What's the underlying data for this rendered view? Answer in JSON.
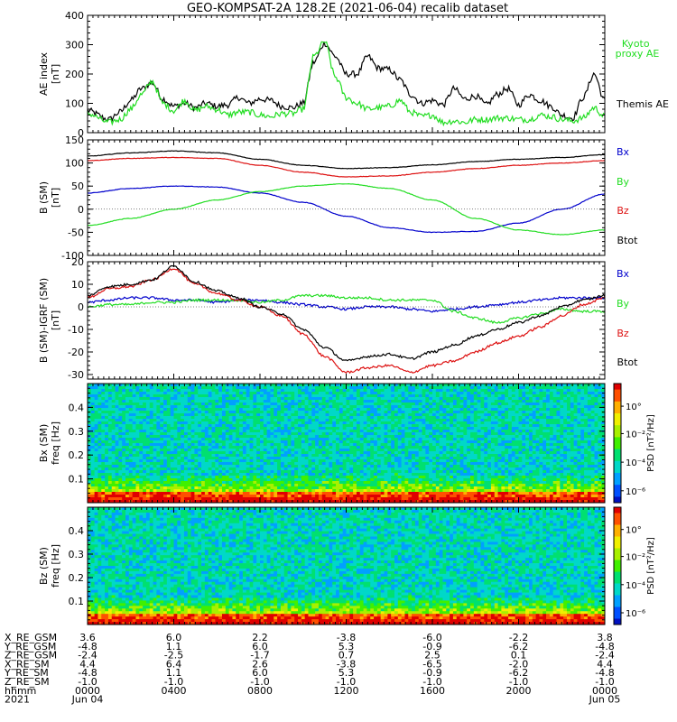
{
  "title": "GEO-KOMPSAT-2A 128.2E (2021-06-04) recalib dataset",
  "colors": {
    "black": "#000000",
    "blue": "#0000cc",
    "green": "#22dd22",
    "red": "#dd1111",
    "lightgreen": "#33cc33"
  },
  "chart_data": [
    {
      "type": "line",
      "ylabel": [
        "AE index",
        "[nT]"
      ],
      "ylim": [
        0,
        400
      ],
      "yticks": [
        0,
        100,
        200,
        300,
        400
      ],
      "xlim": [
        0,
        24
      ],
      "series": [
        {
          "name": "Themis AE",
          "color": "#000000",
          "x": [
            0,
            1,
            1.5,
            2,
            2.5,
            3,
            3.5,
            4,
            4.5,
            5,
            5.5,
            6,
            6.5,
            7,
            7.5,
            8,
            8.5,
            9,
            9.5,
            10,
            10.5,
            11,
            11.5,
            12,
            12.5,
            13,
            13.5,
            14,
            14.5,
            15,
            15.5,
            16,
            16.5,
            17,
            17.5,
            18,
            18.5,
            19,
            19.5,
            20,
            20.5,
            21,
            21.5,
            22,
            22.5,
            23,
            23.5,
            24
          ],
          "y": [
            75,
            45,
            70,
            110,
            150,
            170,
            115,
            90,
            100,
            85,
            100,
            90,
            95,
            120,
            100,
            115,
            110,
            90,
            85,
            100,
            240,
            305,
            260,
            200,
            200,
            260,
            220,
            215,
            180,
            130,
            100,
            110,
            95,
            150,
            115,
            125,
            95,
            130,
            150,
            95,
            130,
            110,
            90,
            60,
            50,
            120,
            200,
            110
          ]
        },
        {
          "name": "Kyoto proxy AE",
          "color": "#22dd22",
          "x": [
            0,
            1,
            1.5,
            2,
            2.5,
            3,
            3.5,
            4,
            4.5,
            5,
            5.5,
            6,
            6.5,
            7,
            7.5,
            8,
            8.5,
            9,
            9.5,
            10,
            10.5,
            11,
            11.5,
            12,
            12.5,
            13,
            13.5,
            14,
            14.5,
            15,
            15.5,
            16,
            16.5,
            17,
            17.5,
            18,
            18.5,
            19,
            19.5,
            20,
            20.5,
            21,
            21.5,
            22,
            22.5,
            23,
            23.5,
            24
          ],
          "y": [
            65,
            35,
            45,
            80,
            130,
            175,
            100,
            75,
            110,
            75,
            90,
            80,
            60,
            70,
            70,
            60,
            55,
            65,
            65,
            80,
            260,
            310,
            190,
            120,
            100,
            80,
            85,
            90,
            110,
            70,
            55,
            60,
            35,
            40,
            35,
            45,
            45,
            50,
            50,
            45,
            45,
            60,
            55,
            45,
            40,
            50,
            85,
            55
          ]
        }
      ]
    },
    {
      "type": "line",
      "ylabel": [
        "B (SM)",
        "[nT]"
      ],
      "ylim": [
        -100,
        150
      ],
      "yticks": [
        -100,
        -50,
        0,
        50,
        100,
        150
      ],
      "xlim": [
        0,
        24
      ],
      "series": [
        {
          "name": "Bx",
          "color": "#0000cc",
          "x": [
            0,
            2,
            4,
            6,
            8,
            10,
            12,
            14,
            16,
            18,
            20,
            22,
            24
          ],
          "y": [
            35,
            45,
            50,
            48,
            35,
            15,
            -15,
            -40,
            -50,
            -48,
            -30,
            0,
            33
          ]
        },
        {
          "name": "By",
          "color": "#22dd22",
          "x": [
            0,
            2,
            4,
            6,
            8,
            10,
            12,
            14,
            16,
            18,
            20,
            22,
            24
          ],
          "y": [
            -35,
            -20,
            0,
            20,
            38,
            50,
            55,
            45,
            20,
            -20,
            -45,
            -55,
            -45
          ]
        },
        {
          "name": "Bz",
          "color": "#dd1111",
          "x": [
            0,
            2,
            4,
            6,
            8,
            10,
            12,
            14,
            16,
            18,
            20,
            22,
            24
          ],
          "y": [
            105,
            110,
            112,
            110,
            95,
            80,
            70,
            72,
            80,
            88,
            95,
            100,
            105
          ]
        },
        {
          "name": "Btot",
          "color": "#000000",
          "x": [
            0,
            2,
            4,
            6,
            8,
            10,
            12,
            14,
            16,
            18,
            20,
            22,
            24
          ],
          "y": [
            115,
            122,
            126,
            122,
            108,
            95,
            88,
            90,
            96,
            103,
            108,
            112,
            118
          ]
        }
      ]
    },
    {
      "type": "line",
      "ylabel": [
        "B (SM)-IGRF (SM)",
        "[nT]"
      ],
      "ylim": [
        -32,
        20
      ],
      "yticks": [
        -30,
        -20,
        -10,
        0,
        10,
        20
      ],
      "xlim": [
        0,
        24
      ],
      "series": [
        {
          "name": "Bx",
          "color": "#0000cc",
          "x": [
            0,
            1,
            2,
            3,
            4,
            5,
            6,
            7,
            8,
            9,
            10,
            11,
            12,
            13,
            14,
            15,
            16,
            17,
            18,
            19,
            20,
            21,
            22,
            23,
            24
          ],
          "y": [
            2,
            3,
            4,
            4,
            3,
            3,
            2,
            3,
            3,
            2,
            1,
            0,
            -1,
            0,
            0,
            -1,
            -2,
            -1,
            0,
            1,
            2,
            3,
            4,
            4,
            4
          ]
        },
        {
          "name": "By",
          "color": "#22dd22",
          "x": [
            0,
            1,
            2,
            3,
            4,
            5,
            6,
            7,
            8,
            9,
            10,
            11,
            12,
            13,
            14,
            15,
            16,
            17,
            18,
            19,
            20,
            21,
            22,
            23,
            24
          ],
          "y": [
            0,
            1,
            1,
            2,
            2,
            3,
            3,
            3,
            2,
            3,
            5,
            5,
            4,
            4,
            3,
            3,
            3,
            -2,
            -5,
            -7,
            -5,
            -3,
            -1,
            -2,
            -2
          ]
        },
        {
          "name": "Bz",
          "color": "#dd1111",
          "x": [
            0,
            1,
            2,
            3,
            4,
            5,
            6,
            7,
            8,
            9,
            10,
            11,
            12,
            13,
            14,
            15,
            16,
            17,
            18,
            19,
            20,
            21,
            22,
            23,
            24
          ],
          "y": [
            4,
            8,
            9,
            12,
            17,
            10,
            6,
            3,
            0,
            -4,
            -12,
            -22,
            -29,
            -27,
            -26,
            -29,
            -26,
            -24,
            -20,
            -16,
            -13,
            -9,
            -4,
            1,
            4
          ]
        },
        {
          "name": "Btot",
          "color": "#000000",
          "x": [
            0,
            1,
            2,
            3,
            4,
            5,
            6,
            7,
            8,
            9,
            10,
            11,
            12,
            13,
            14,
            15,
            16,
            17,
            18,
            19,
            20,
            21,
            22,
            23,
            24
          ],
          "y": [
            5,
            9,
            10,
            12,
            18,
            11,
            7,
            4,
            0,
            -3,
            -10,
            -18,
            -24,
            -22,
            -21,
            -23,
            -20,
            -17,
            -13,
            -10,
            -7,
            -4,
            0,
            3,
            5
          ]
        }
      ]
    },
    {
      "type": "heatmap",
      "ylabel": [
        "Bx (SM)",
        "freq [Hz]"
      ],
      "ylim": [
        0,
        0.5
      ],
      "yticks": [
        0.1,
        0.2,
        0.3,
        0.4
      ],
      "colorbar": {
        "label": "PSD [nT²/Hz]",
        "ticks": [
          "10°",
          "10⁻²",
          "10⁻⁴",
          "10⁻⁶"
        ]
      }
    },
    {
      "type": "heatmap",
      "ylabel": [
        "Bz (SM)",
        "freq [Hz]"
      ],
      "ylim": [
        0,
        0.5
      ],
      "yticks": [
        0.1,
        0.2,
        0.3,
        0.4
      ],
      "colorbar": {
        "label": "PSD [nT²/Hz]",
        "ticks": [
          "10°",
          "10⁻²",
          "10⁻⁴",
          "10⁻⁶"
        ]
      }
    }
  ],
  "ephemeris": {
    "labels": [
      "X_RE_GSM",
      "Y_RE_GSM",
      "Z_RE_GSM",
      "X_RE_SM",
      "Y_RE_SM",
      "Z_RE_SM",
      "hhmm",
      "2021"
    ],
    "columns": [
      [
        "3.6",
        "-4.8",
        "-2.4",
        "4.4",
        "-4.8",
        "-1.0",
        "0000",
        "Jun 04"
      ],
      [
        "6.0",
        "1.1",
        "-2.5",
        "6.4",
        "1.1",
        "-1.0",
        "0400",
        ""
      ],
      [
        "2.2",
        "6.0",
        "-1.7",
        "2.6",
        "6.0",
        "-1.0",
        "0800",
        ""
      ],
      [
        "-3.8",
        "5.3",
        "0.7",
        "-3.8",
        "5.3",
        "-1.0",
        "1200",
        ""
      ],
      [
        "-6.0",
        "-0.9",
        "2.5",
        "-6.5",
        "-0.9",
        "-1.0",
        "1600",
        ""
      ],
      [
        "-2.2",
        "-6.2",
        "0.1",
        "-2.0",
        "-6.2",
        "-1.0",
        "2000",
        ""
      ],
      [
        "3.8",
        "-4.8",
        "-2.4",
        "4.4",
        "-4.8",
        "-1.0",
        "0000",
        "Jun 05"
      ]
    ]
  }
}
